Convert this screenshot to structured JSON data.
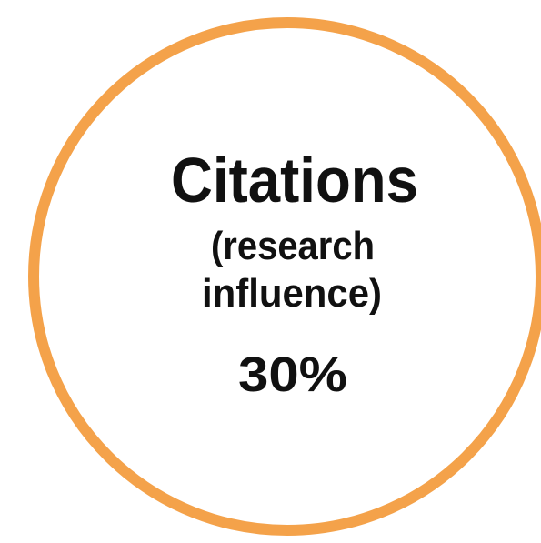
{
  "badge": {
    "title": "Citations",
    "subtitle_lines": [
      "(research",
      "influence)"
    ],
    "weight": "30%"
  }
}
